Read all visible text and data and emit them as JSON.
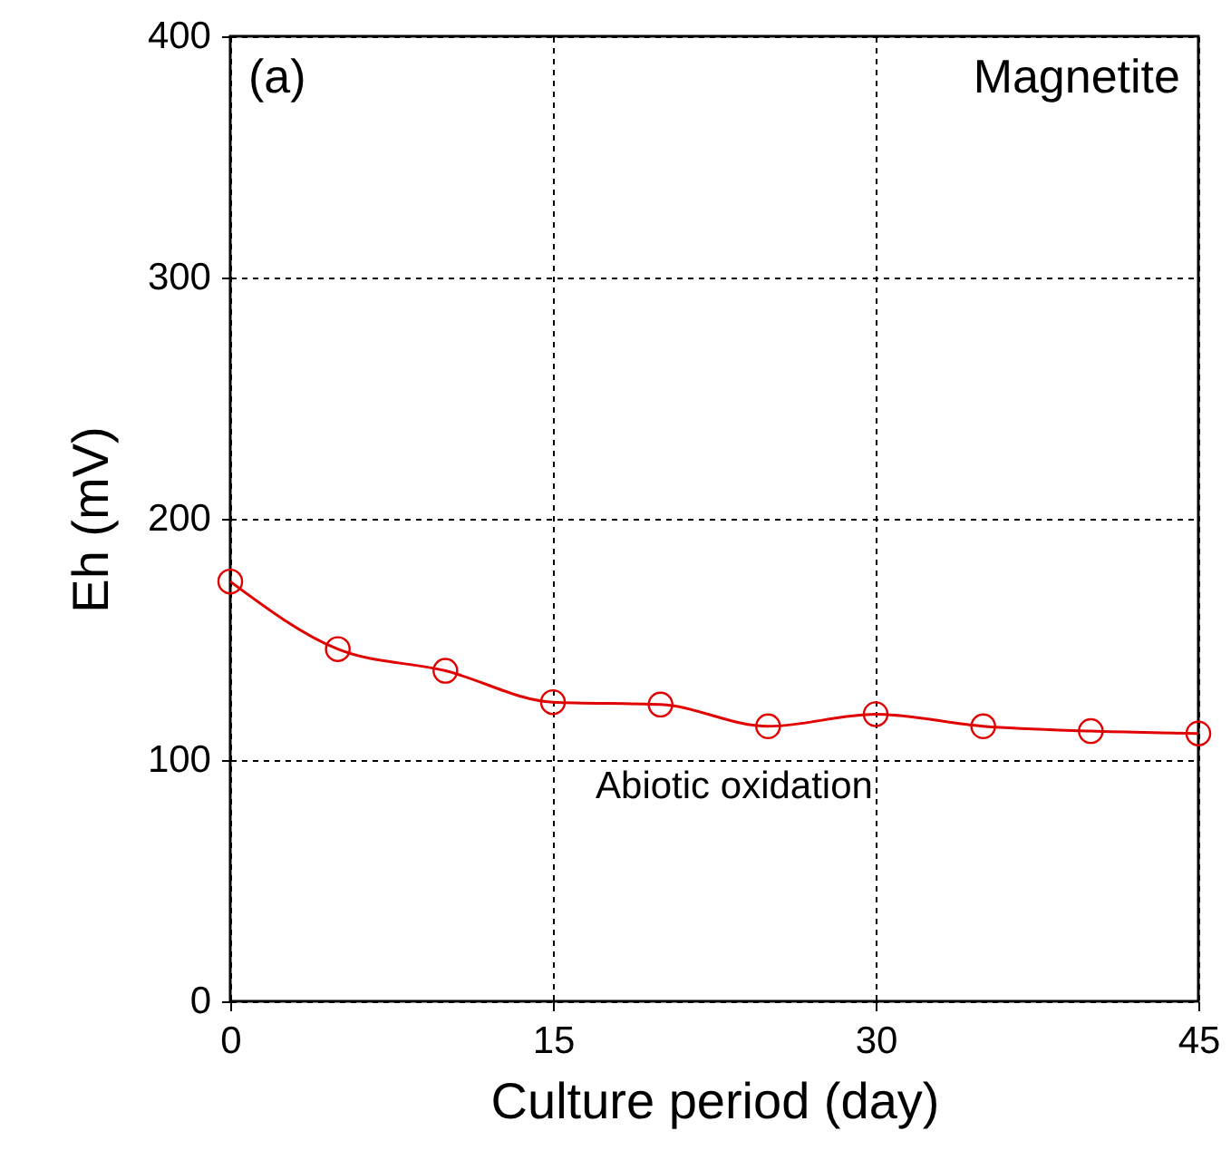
{
  "chart_data": {
    "type": "line",
    "xlabel": "Culture period (day)",
    "ylabel": "Eh (mV)",
    "x": [
      0,
      5,
      10,
      15,
      20,
      25,
      30,
      35,
      40,
      45
    ],
    "series": [
      {
        "color": "#e00000",
        "values": [
          174,
          146,
          137,
          124,
          123,
          114,
          119,
          114,
          112,
          111
        ]
      }
    ],
    "xlim": [
      0,
      45
    ],
    "xticks": [
      0,
      15,
      30,
      45
    ],
    "ylim": [
      0,
      400
    ],
    "yticks": [
      0,
      100,
      200,
      300,
      400
    ],
    "grid": true,
    "marker": "circle",
    "line_style": "solid",
    "annotations": [
      "(a)",
      "Magnetite",
      "Abiotic oxidation"
    ]
  }
}
